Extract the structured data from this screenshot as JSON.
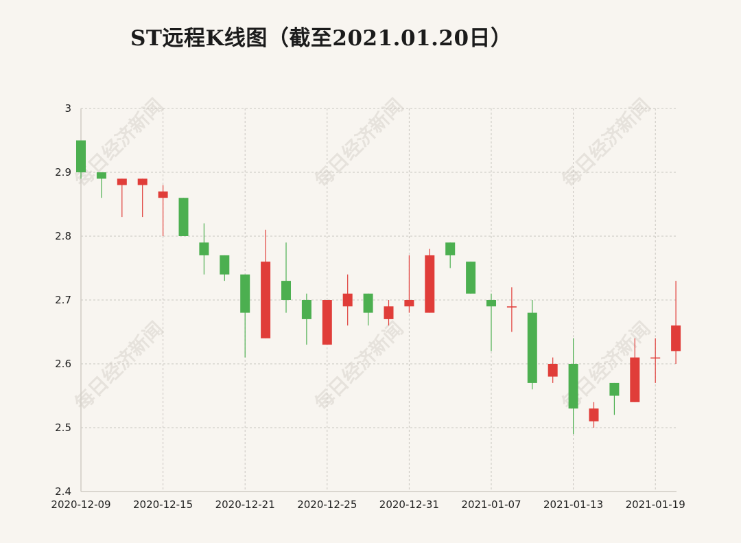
{
  "watermark": "每日经济新闻",
  "colors": {
    "up": "#e03d39",
    "down": "#4caf50",
    "grid": "#c9c6c0",
    "background": "#f8f5f0"
  },
  "chart_data": {
    "type": "candlestick",
    "title": "ST远程K线图（截至2021.01.20日）",
    "xlabel": "",
    "ylabel": "",
    "ylim": [
      2.4,
      3.0
    ],
    "yticks": [
      "3",
      "2.9",
      "2.8",
      "2.7",
      "2.6",
      "2.5",
      "2.4"
    ],
    "xticks": [
      "2020-12-09",
      "2020-12-15",
      "2020-12-21",
      "2020-12-25",
      "2020-12-31",
      "2021-01-07",
      "2021-01-13",
      "2021-01-19"
    ],
    "grid": true,
    "candles": [
      {
        "date": "2020-12-09",
        "open": 2.95,
        "close": 2.9,
        "high": 2.95,
        "low": 2.89
      },
      {
        "date": "2020-12-10",
        "open": 2.9,
        "close": 2.89,
        "high": 2.9,
        "low": 2.86
      },
      {
        "date": "2020-12-11",
        "open": 2.88,
        "close": 2.89,
        "high": 2.89,
        "low": 2.83
      },
      {
        "date": "2020-12-14",
        "open": 2.88,
        "close": 2.89,
        "high": 2.89,
        "low": 2.83
      },
      {
        "date": "2020-12-15",
        "open": 2.86,
        "close": 2.87,
        "high": 2.88,
        "low": 2.8
      },
      {
        "date": "2020-12-16",
        "open": 2.86,
        "close": 2.8,
        "high": 2.86,
        "low": 2.8
      },
      {
        "date": "2020-12-17",
        "open": 2.79,
        "close": 2.77,
        "high": 2.82,
        "low": 2.74
      },
      {
        "date": "2020-12-18",
        "open": 2.77,
        "close": 2.74,
        "high": 2.77,
        "low": 2.73
      },
      {
        "date": "2020-12-21",
        "open": 2.74,
        "close": 2.68,
        "high": 2.74,
        "low": 2.61
      },
      {
        "date": "2020-12-22",
        "open": 2.64,
        "close": 2.76,
        "high": 2.81,
        "low": 2.64
      },
      {
        "date": "2020-12-23",
        "open": 2.73,
        "close": 2.7,
        "high": 2.79,
        "low": 2.68
      },
      {
        "date": "2020-12-24",
        "open": 2.7,
        "close": 2.67,
        "high": 2.71,
        "low": 2.63
      },
      {
        "date": "2020-12-25",
        "open": 2.63,
        "close": 2.7,
        "high": 2.7,
        "low": 2.63
      },
      {
        "date": "2020-12-28",
        "open": 2.69,
        "close": 2.71,
        "high": 2.74,
        "low": 2.66
      },
      {
        "date": "2020-12-29",
        "open": 2.71,
        "close": 2.68,
        "high": 2.71,
        "low": 2.66
      },
      {
        "date": "2020-12-30",
        "open": 2.67,
        "close": 2.69,
        "high": 2.7,
        "low": 2.66
      },
      {
        "date": "2020-12-31",
        "open": 2.69,
        "close": 2.7,
        "high": 2.77,
        "low": 2.68
      },
      {
        "date": "2021-01-04",
        "open": 2.68,
        "close": 2.77,
        "high": 2.78,
        "low": 2.68
      },
      {
        "date": "2021-01-05",
        "open": 2.79,
        "close": 2.77,
        "high": 2.79,
        "low": 2.75
      },
      {
        "date": "2021-01-06",
        "open": 2.76,
        "close": 2.71,
        "high": 2.76,
        "low": 2.71
      },
      {
        "date": "2021-01-07",
        "open": 2.7,
        "close": 2.69,
        "high": 2.71,
        "low": 2.62
      },
      {
        "date": "2021-01-08",
        "open": 2.69,
        "close": 2.69,
        "high": 2.72,
        "low": 2.65
      },
      {
        "date": "2021-01-11",
        "open": 2.68,
        "close": 2.57,
        "high": 2.7,
        "low": 2.56
      },
      {
        "date": "2021-01-12",
        "open": 2.58,
        "close": 2.6,
        "high": 2.61,
        "low": 2.57
      },
      {
        "date": "2021-01-13",
        "open": 2.6,
        "close": 2.53,
        "high": 2.64,
        "low": 2.49
      },
      {
        "date": "2021-01-14",
        "open": 2.51,
        "close": 2.53,
        "high": 2.54,
        "low": 2.5
      },
      {
        "date": "2021-01-15",
        "open": 2.57,
        "close": 2.55,
        "high": 2.57,
        "low": 2.52
      },
      {
        "date": "2021-01-18",
        "open": 2.54,
        "close": 2.61,
        "high": 2.64,
        "low": 2.54
      },
      {
        "date": "2021-01-19",
        "open": 2.61,
        "close": 2.61,
        "high": 2.64,
        "low": 2.57
      },
      {
        "date": "2021-01-20",
        "open": 2.62,
        "close": 2.66,
        "high": 2.73,
        "low": 2.6
      }
    ]
  }
}
